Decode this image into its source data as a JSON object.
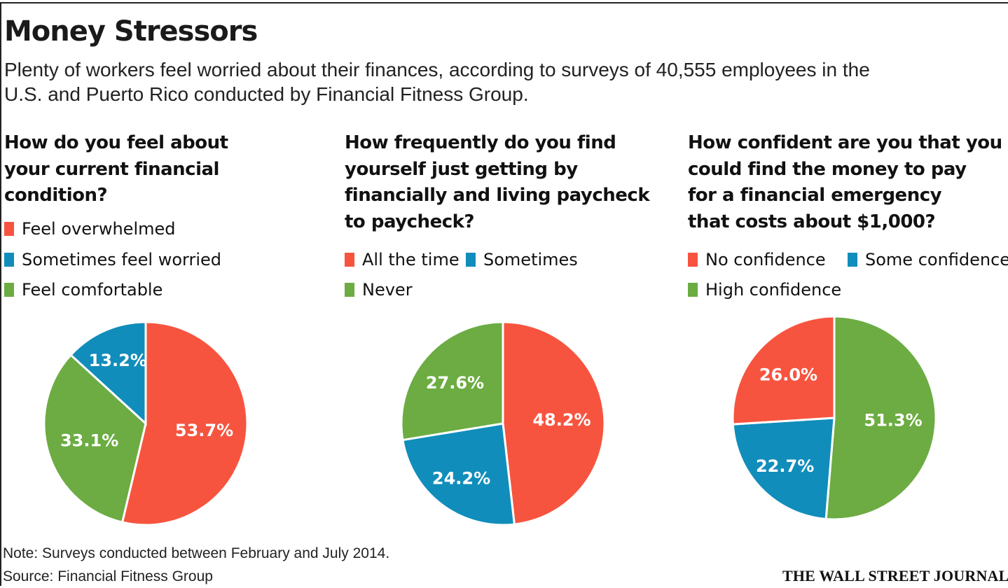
{
  "title": "Money Stressors",
  "subtitle": "Plenty of workers feel worried about their finances, according to surveys of 40,555 employees in the U.S. and Puerto Rico conducted by Financial Fitness Group.",
  "note": "Note: Surveys conducted between February and July 2014.",
  "source": "Source: Financial Fitness Group",
  "publisher": "THE WALL STREET JOURNAL.",
  "colors": {
    "red": "#f7543f",
    "blue": "#118dbb",
    "green": "#6cac42"
  },
  "chart_data": [
    {
      "type": "pie",
      "title": "How do you feel about\nyour current financial\ncondition?",
      "categories": [
        "Feel overwhelmed",
        "Sometimes feel worried",
        "Feel comfortable"
      ],
      "values": [
        53.7,
        13.2,
        33.1
      ],
      "slice_order": [
        "Feel overwhelmed",
        "Feel comfortable",
        "Sometimes feel worried"
      ],
      "value_labels": [
        "53.7%",
        "13.2%",
        "33.1%"
      ],
      "colors": [
        "#f7543f",
        "#6cac42",
        "#118dbb"
      ],
      "legend": [
        {
          "label": "Feel overwhelmed",
          "color": "#f7543f"
        },
        {
          "label": "Sometimes feel worried",
          "color": "#118dbb"
        },
        {
          "label": "Feel comfortable",
          "color": "#6cac42"
        }
      ],
      "legend_position": "top-left"
    },
    {
      "type": "pie",
      "title": "How frequently do you find\nyourself just getting by\nfinancially and living paycheck\nto paycheck?",
      "categories": [
        "All the time",
        "Sometimes",
        "Never"
      ],
      "values": [
        48.2,
        24.2,
        27.6
      ],
      "slice_order": [
        "All the time",
        "Sometimes",
        "Never"
      ],
      "value_labels": [
        "48.2%",
        "24.2%",
        "27.6%"
      ],
      "colors": [
        "#f7543f",
        "#118dbb",
        "#6cac42"
      ],
      "legend": [
        {
          "label": "All the time",
          "color": "#f7543f"
        },
        {
          "label": "Sometimes",
          "color": "#118dbb"
        },
        {
          "label": "Never",
          "color": "#6cac42"
        }
      ],
      "legend_position": "top-left"
    },
    {
      "type": "pie",
      "title": "How confident are you that you\ncould find the money to pay\nfor a financial emergency\nthat costs about $1,000?",
      "categories": [
        "High confidence",
        "Some confidence",
        "No confidence"
      ],
      "values": [
        51.3,
        22.7,
        26.0
      ],
      "slice_order": [
        "High confidence",
        "Some confidence",
        "No confidence"
      ],
      "value_labels": [
        "51.3%",
        "22.7%",
        "26.0%"
      ],
      "colors": [
        "#6cac42",
        "#118dbb",
        "#f7543f"
      ],
      "legend": [
        {
          "label": "No confidence",
          "color": "#f7543f"
        },
        {
          "label": "Some confidence",
          "color": "#118dbb"
        },
        {
          "label": "High confidence",
          "color": "#6cac42"
        }
      ],
      "legend_position": "top-left"
    }
  ]
}
